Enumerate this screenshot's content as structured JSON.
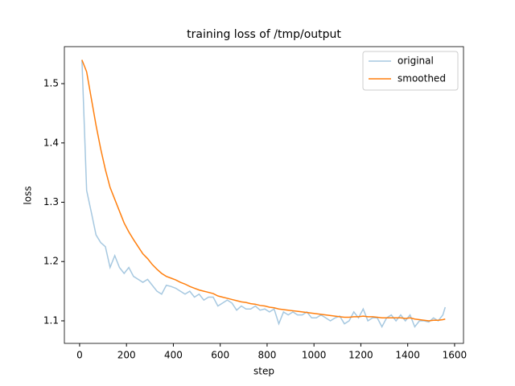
{
  "chart_data": {
    "type": "line",
    "title": "training loss of /tmp/output",
    "x_label": "step",
    "y_label": "loss",
    "x": [
      10,
      30,
      50,
      70,
      90,
      110,
      130,
      150,
      170,
      190,
      210,
      230,
      250,
      270,
      290,
      310,
      330,
      350,
      370,
      390,
      410,
      430,
      450,
      470,
      490,
      510,
      530,
      550,
      570,
      590,
      610,
      630,
      650,
      670,
      690,
      710,
      730,
      750,
      770,
      790,
      810,
      830,
      850,
      870,
      890,
      910,
      930,
      950,
      970,
      990,
      1010,
      1030,
      1050,
      1070,
      1090,
      1110,
      1130,
      1150,
      1170,
      1190,
      1210,
      1230,
      1250,
      1270,
      1290,
      1310,
      1330,
      1350,
      1370,
      1390,
      1410,
      1430,
      1450,
      1470,
      1490,
      1510,
      1530,
      1550,
      1560
    ],
    "series": [
      {
        "name": "original",
        "color": "#a6c8e0",
        "values": [
          1.54,
          1.32,
          1.283,
          1.245,
          1.232,
          1.225,
          1.19,
          1.21,
          1.19,
          1.18,
          1.19,
          1.175,
          1.17,
          1.165,
          1.17,
          1.16,
          1.15,
          1.145,
          1.16,
          1.158,
          1.155,
          1.15,
          1.145,
          1.15,
          1.14,
          1.145,
          1.135,
          1.14,
          1.14,
          1.125,
          1.13,
          1.135,
          1.13,
          1.118,
          1.125,
          1.12,
          1.12,
          1.125,
          1.118,
          1.12,
          1.115,
          1.12,
          1.095,
          1.115,
          1.11,
          1.115,
          1.11,
          1.11,
          1.115,
          1.105,
          1.105,
          1.11,
          1.105,
          1.1,
          1.105,
          1.108,
          1.095,
          1.1,
          1.115,
          1.105,
          1.12,
          1.1,
          1.105,
          1.105,
          1.09,
          1.105,
          1.11,
          1.1,
          1.11,
          1.1,
          1.11,
          1.09,
          1.1,
          1.1,
          1.098,
          1.105,
          1.1,
          1.11,
          1.123
        ]
      },
      {
        "name": "smoothed",
        "color": "#ff7f0e",
        "values": [
          1.54,
          1.52,
          1.475,
          1.43,
          1.39,
          1.355,
          1.325,
          1.305,
          1.285,
          1.265,
          1.25,
          1.237,
          1.225,
          1.213,
          1.205,
          1.195,
          1.187,
          1.18,
          1.175,
          1.172,
          1.169,
          1.165,
          1.162,
          1.158,
          1.155,
          1.152,
          1.15,
          1.148,
          1.146,
          1.142,
          1.14,
          1.138,
          1.136,
          1.134,
          1.132,
          1.131,
          1.129,
          1.128,
          1.126,
          1.125,
          1.123,
          1.122,
          1.12,
          1.119,
          1.118,
          1.117,
          1.116,
          1.115,
          1.114,
          1.113,
          1.112,
          1.111,
          1.11,
          1.109,
          1.108,
          1.107,
          1.106,
          1.106,
          1.107,
          1.107,
          1.108,
          1.107,
          1.107,
          1.106,
          1.105,
          1.105,
          1.105,
          1.105,
          1.105,
          1.104,
          1.105,
          1.103,
          1.102,
          1.101,
          1.1,
          1.101,
          1.101,
          1.102,
          1.103
        ]
      }
    ],
    "xlim": [
      -65,
      1638
    ],
    "ylim": [
      1.062,
      1.5624
    ],
    "xticks": [
      0,
      200,
      400,
      600,
      800,
      1000,
      1200,
      1400,
      1600
    ],
    "yticks": [
      1.1,
      1.2,
      1.3,
      1.4,
      1.5
    ],
    "legend": "upper right"
  }
}
